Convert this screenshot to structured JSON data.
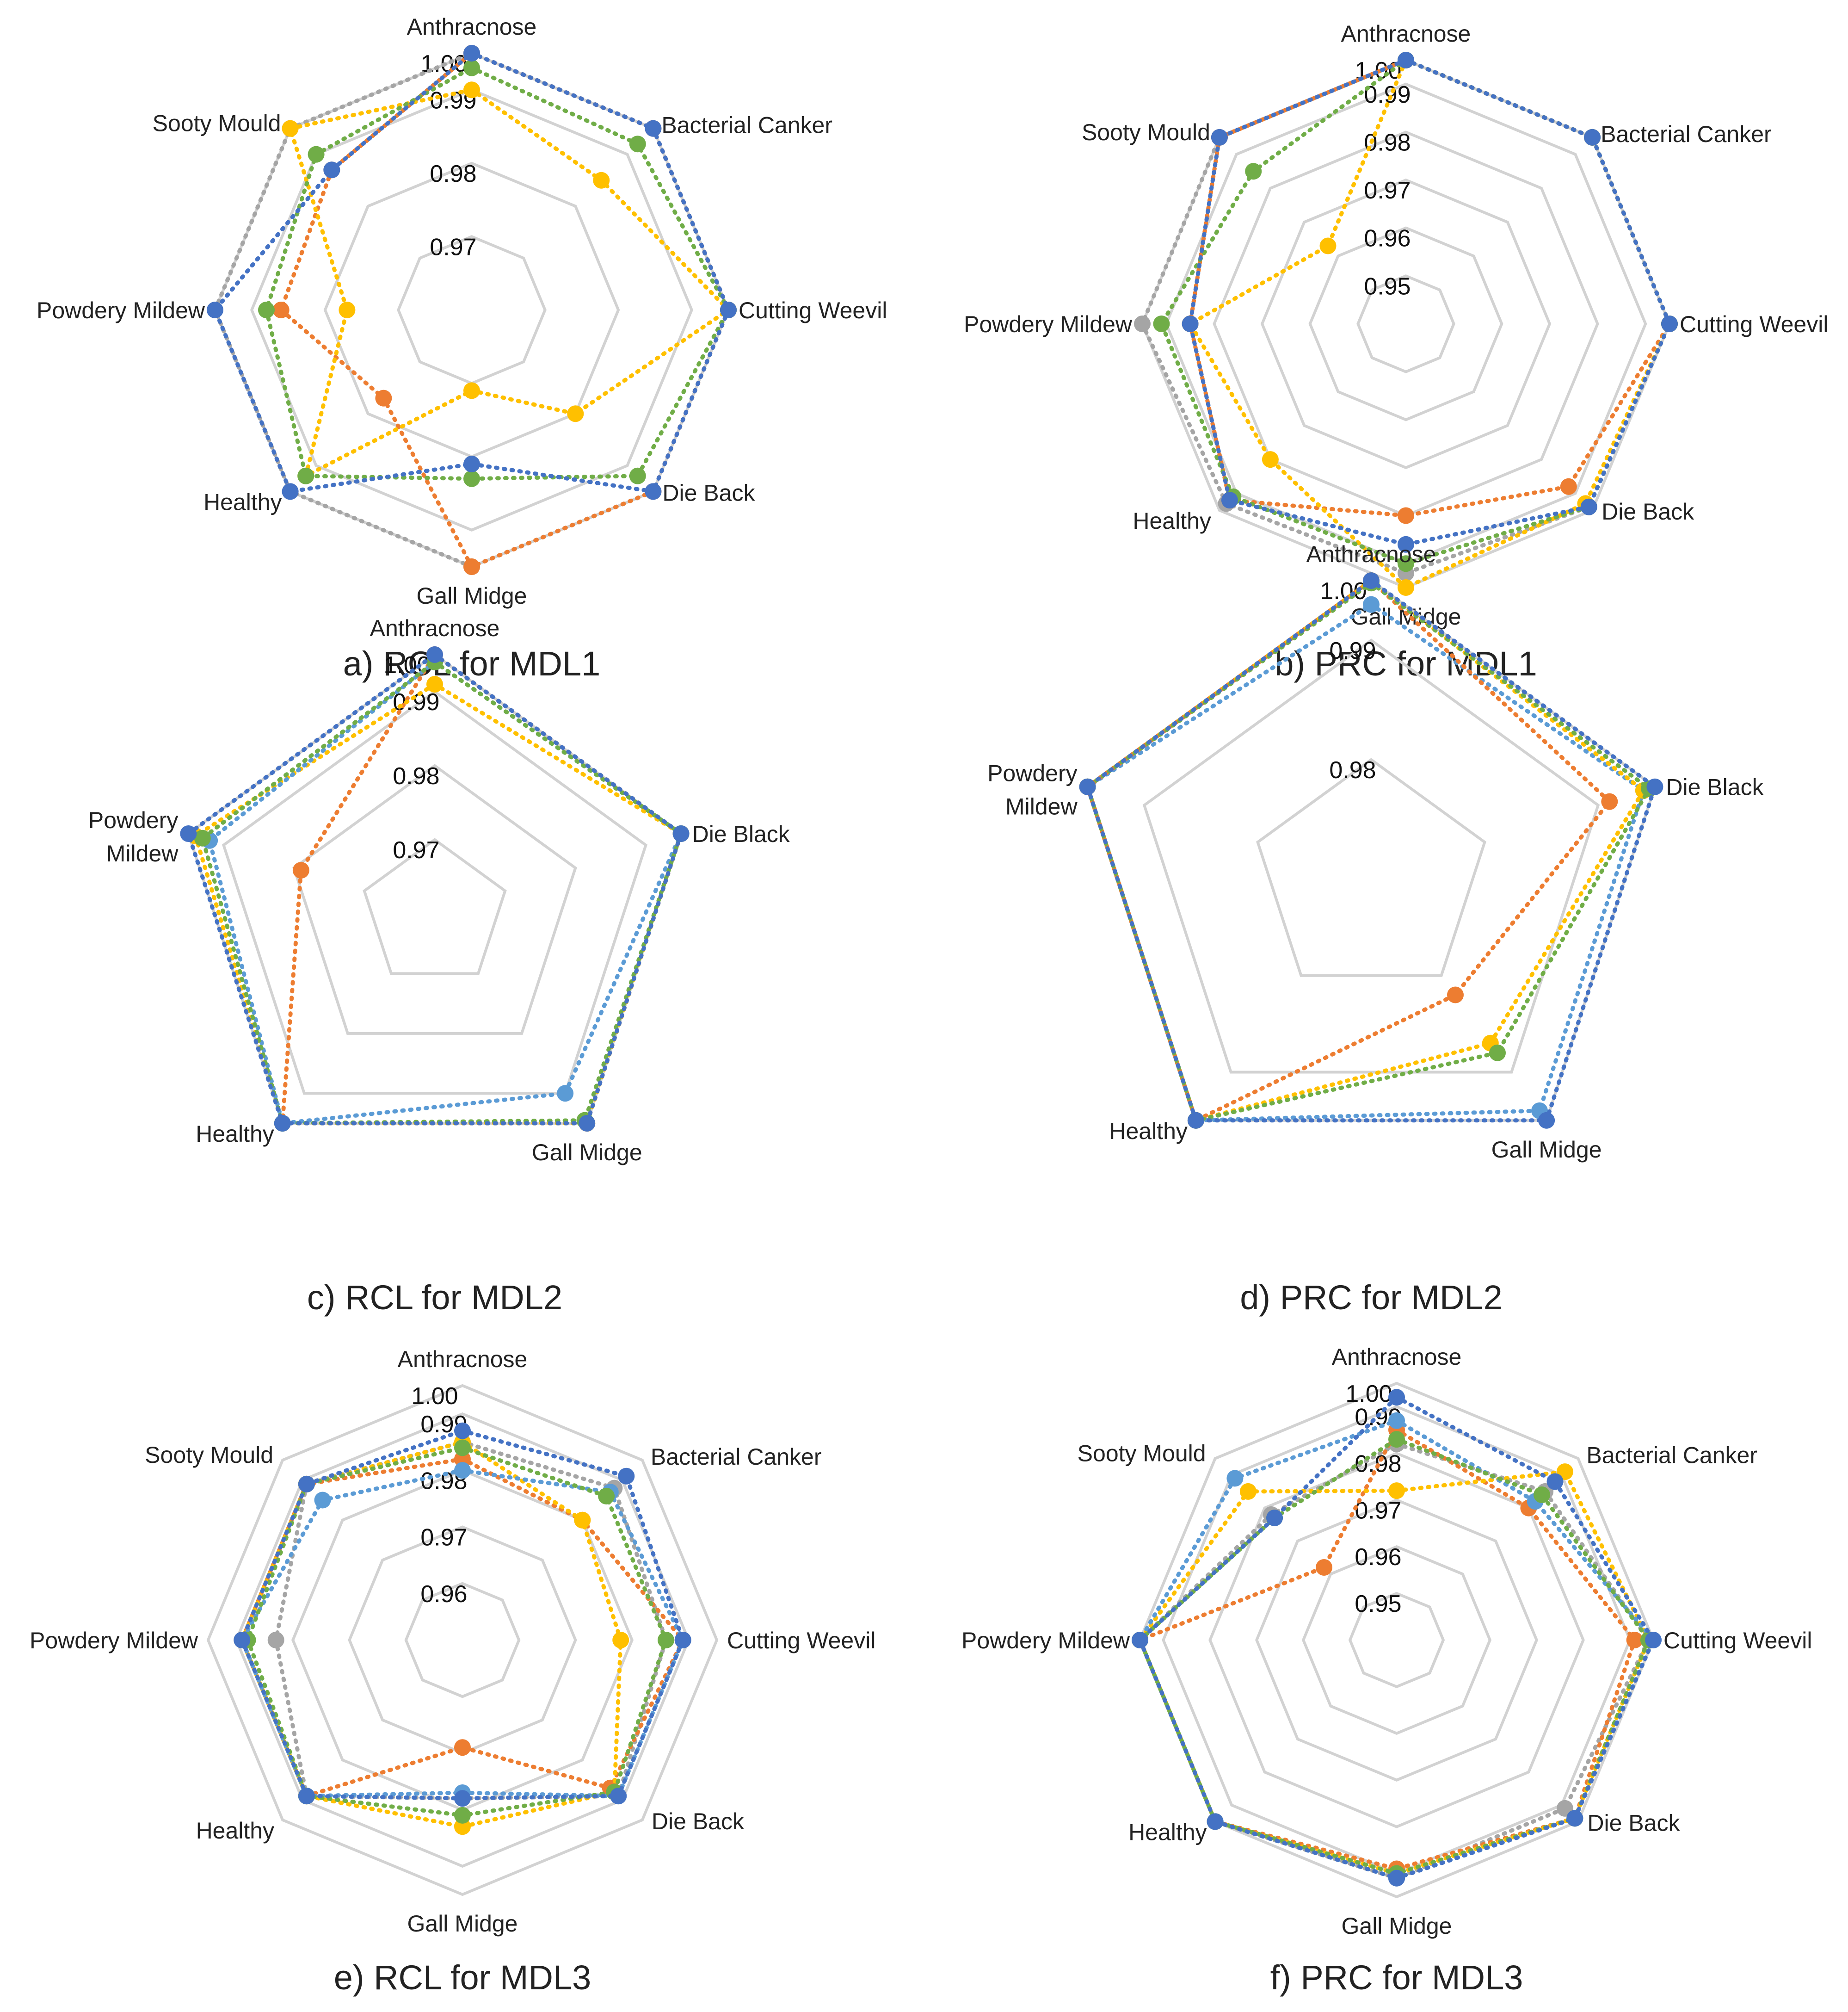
{
  "series_colors": {
    "blue": "#4472c4",
    "orange": "#ed7d31",
    "gray": "#a5a5a5",
    "yellow": "#ffc000",
    "lightblue": "#5b9bd5",
    "green": "#70ad47"
  },
  "chart_data": [
    {
      "type": "radar",
      "caption": "a) RCL for MDL1",
      "categories": [
        "Anthracnose",
        "Bacterial Canker",
        "Cutting Weevil",
        "Die Back",
        "Gall Midge",
        "Healthy",
        "Powdery Mildew",
        "Sooty Mould"
      ],
      "ticks": [
        "1.00",
        "0.99",
        "0.98",
        "0.97"
      ],
      "rmin": 0.965,
      "rmax": 1.0,
      "grid_levels": [
        0.975,
        0.985,
        0.995,
        1.0
      ],
      "series": [
        {
          "name": "gray",
          "values": [
            1.0,
            1.0,
            1.0,
            1.0,
            1.0,
            1.0,
            1.0,
            1.0
          ]
        },
        {
          "name": "orange",
          "values": [
            1.0,
            1.0,
            1.0,
            1.0,
            1.0,
            0.982,
            0.991,
            0.992
          ]
        },
        {
          "name": "yellow",
          "values": [
            0.995,
            0.99,
            1.0,
            0.985,
            0.976,
            0.997,
            0.982,
            1.0
          ]
        },
        {
          "name": "green",
          "values": [
            0.998,
            0.997,
            1.0,
            0.997,
            0.988,
            0.997,
            0.993,
            0.995
          ]
        },
        {
          "name": "blue",
          "values": [
            1.0,
            1.0,
            1.0,
            1.0,
            0.986,
            1.0,
            1.0,
            0.992
          ]
        }
      ]
    },
    {
      "type": "radar",
      "caption": "b) PRC for MDL1",
      "categories": [
        "Anthracnose",
        "Bacterial Canker",
        "Cutting Weevil",
        "Die Back",
        "Gall Midge",
        "Healthy",
        "Powdery Mildew",
        "Sooty Mould"
      ],
      "ticks": [
        "1.00",
        "0.99",
        "0.98",
        "0.97",
        "0.96",
        "0.95"
      ],
      "rmin": 0.945,
      "rmax": 1.0,
      "grid_levels": [
        0.955,
        0.965,
        0.975,
        0.985,
        0.995,
        1.0
      ],
      "series": [
        {
          "name": "gray",
          "values": [
            1.0,
            1.0,
            1.0,
            0.999,
            0.997,
            0.998,
            1.0,
            1.0
          ]
        },
        {
          "name": "orange",
          "values": [
            1.0,
            1.0,
            1.0,
            0.993,
            0.985,
            0.997,
            0.99,
            1.0
          ]
        },
        {
          "name": "yellow",
          "values": [
            1.0,
            1.0,
            1.0,
            0.998,
            1.0,
            0.985,
            0.99,
            0.968
          ]
        },
        {
          "name": "green",
          "values": [
            1.0,
            1.0,
            1.0,
            0.999,
            0.995,
            0.996,
            0.996,
            0.99
          ]
        },
        {
          "name": "blue",
          "values": [
            1.0,
            1.0,
            1.0,
            0.999,
            0.991,
            0.997,
            0.99,
            1.0
          ]
        }
      ]
    },
    {
      "type": "radar",
      "caption": "c) RCL for MDL2",
      "categories": [
        "Anthracnose",
        "Die Black",
        "Gall Midge",
        "Healthy",
        "Powdery Mildew"
      ],
      "ticks": [
        "1.00",
        "0.99",
        "0.98",
        "0.97"
      ],
      "rmin": 0.965,
      "rmax": 1.0,
      "grid_levels": [
        0.975,
        0.985,
        0.995,
        1.0
      ],
      "series": [
        {
          "name": "orange",
          "values": [
            1.0,
            1.0,
            1.0,
            1.0,
            0.984
          ]
        },
        {
          "name": "yellow",
          "values": [
            0.996,
            1.0,
            1.0,
            1.0,
            0.999
          ]
        },
        {
          "name": "lightblue",
          "values": [
            0.999,
            1.0,
            0.995,
            1.0,
            0.997
          ]
        },
        {
          "name": "green",
          "values": [
            0.999,
            1.0,
            0.9995,
            1.0,
            0.998
          ]
        },
        {
          "name": "blue",
          "values": [
            1.0,
            1.0,
            1.0,
            1.0,
            1.0
          ]
        }
      ]
    },
    {
      "type": "radar",
      "caption": "d) PRC for MDL2",
      "categories": [
        "Anthracnose",
        "Die Black",
        "Gall Midge",
        "Healthy",
        "Powdery Mildew"
      ],
      "ticks": [
        "1.00",
        "0.99",
        "0.98"
      ],
      "rmin": 0.975,
      "rmax": 1.0,
      "grid_levels": [
        0.985,
        0.995,
        1.0
      ],
      "series": [
        {
          "name": "lightblue",
          "values": [
            0.998,
            0.999,
            0.999,
            1.0,
            1.0
          ]
        },
        {
          "name": "orange",
          "values": [
            1.0,
            0.996,
            0.987,
            1.0,
            1.0
          ]
        },
        {
          "name": "yellow",
          "values": [
            1.0,
            0.999,
            0.992,
            1.0,
            1.0
          ]
        },
        {
          "name": "green",
          "values": [
            0.9998,
            0.9995,
            0.993,
            1.0,
            1.0
          ]
        },
        {
          "name": "blue",
          "values": [
            1.0,
            1.0,
            1.0,
            1.0,
            1.0
          ]
        }
      ]
    },
    {
      "type": "radar",
      "caption": "e) RCL for MDL3",
      "categories": [
        "Anthracnose",
        "Bacterial Canker",
        "Cutting Weevil",
        "Die Back",
        "Gall Midge",
        "Healthy",
        "Powdery Mildew",
        "Sooty Mould"
      ],
      "ticks": [
        "1.00",
        "0.99",
        "0.98",
        "0.97",
        "0.96"
      ],
      "rmin": 0.955,
      "rmax": 1.0,
      "grid_levels": [
        0.965,
        0.975,
        0.985,
        0.995,
        1.0
      ],
      "series": [
        {
          "name": "gray",
          "values": [
            0.99,
            0.993,
            0.991,
            0.994,
            0.983,
            0.994,
            0.988,
            0.994
          ]
        },
        {
          "name": "orange",
          "values": [
            0.987,
            0.985,
            0.994,
            0.992,
            0.974,
            0.994,
            0.994,
            0.994
          ]
        },
        {
          "name": "yellow",
          "values": [
            0.99,
            0.985,
            0.983,
            0.993,
            0.988,
            0.994,
            0.994,
            0.994
          ]
        },
        {
          "name": "lightblue",
          "values": [
            0.985,
            0.992,
            0.994,
            0.994,
            0.982,
            0.994,
            0.994,
            0.99
          ]
        },
        {
          "name": "green",
          "values": [
            0.989,
            0.991,
            0.991,
            0.993,
            0.986,
            0.994,
            0.993,
            0.994
          ]
        },
        {
          "name": "blue",
          "values": [
            0.992,
            0.996,
            0.994,
            0.994,
            0.983,
            0.994,
            0.994,
            0.994
          ]
        }
      ]
    },
    {
      "type": "radar",
      "caption": "f) PRC for MDL3",
      "categories": [
        "Anthracnose",
        "Bacterial Canker",
        "Cutting Weevil",
        "Die Back",
        "Gall Midge",
        "Healthy",
        "Powdery Mildew",
        "Sooty Mould"
      ],
      "ticks": [
        "1.00",
        "0.99",
        "0.98",
        "0.97",
        "0.96",
        "0.95"
      ],
      "rmin": 0.945,
      "rmax": 1.0,
      "grid_levels": [
        0.955,
        0.965,
        0.975,
        0.985,
        0.995,
        1.0
      ],
      "series": [
        {
          "name": "gray",
          "values": [
            0.987,
            0.99,
            0.999,
            0.996,
            0.996,
            1.0,
            1.0,
            0.983
          ]
        },
        {
          "name": "orange",
          "values": [
            0.99,
            0.985,
            0.996,
            0.999,
            0.994,
            1.0,
            1.0,
            0.967
          ]
        },
        {
          "name": "yellow",
          "values": [
            0.977,
            0.996,
            0.999,
            0.999,
            0.995,
            1.0,
            1.0,
            0.99
          ]
        },
        {
          "name": "lightblue",
          "values": [
            0.992,
            0.987,
            1.0,
            0.999,
            0.996,
            1.0,
            1.0,
            0.994
          ]
        },
        {
          "name": "green",
          "values": [
            0.988,
            0.989,
            0.999,
            0.999,
            0.995,
            1.0,
            1.0,
            0.982
          ]
        },
        {
          "name": "blue",
          "values": [
            0.997,
            0.993,
            1.0,
            0.999,
            0.996,
            1.0,
            1.0,
            0.982
          ]
        }
      ]
    }
  ]
}
